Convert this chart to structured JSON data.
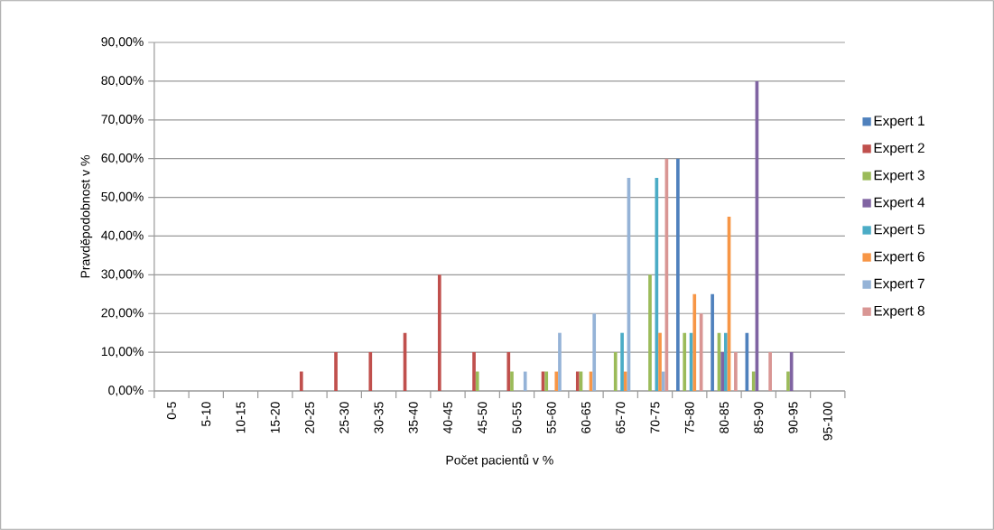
{
  "chart_data": {
    "type": "bar",
    "xlabel": "Počet pacientů v %",
    "ylabel": "Pravděpodobnost v %",
    "categories": [
      "0-5",
      "5-10",
      "10-15",
      "15-20",
      "20-25",
      "25-30",
      "30-35",
      "35-40",
      "40-45",
      "45-50",
      "50-55",
      "55-60",
      "60-65",
      "65-70",
      "70-75",
      "75-80",
      "80-85",
      "85-90",
      "90-95",
      "95-100"
    ],
    "series": [
      {
        "name": "Expert 1",
        "color": "#4f81bd",
        "values": [
          0,
          0,
          0,
          0,
          0,
          0,
          0,
          0,
          0,
          0,
          0,
          0,
          0,
          0,
          0,
          60,
          25,
          15,
          0,
          0
        ]
      },
      {
        "name": "Expert 2",
        "color": "#c0504d",
        "values": [
          0,
          0,
          0,
          0,
          5,
          10,
          10,
          15,
          30,
          10,
          10,
          5,
          5,
          0,
          0,
          0,
          0,
          0,
          0,
          0
        ]
      },
      {
        "name": "Expert 3",
        "color": "#9bbb59",
        "values": [
          0,
          0,
          0,
          0,
          0,
          0,
          0,
          0,
          0,
          5,
          5,
          5,
          5,
          10,
          30,
          15,
          15,
          5,
          5,
          0
        ]
      },
      {
        "name": "Expert 4",
        "color": "#8064a2",
        "values": [
          0,
          0,
          0,
          0,
          0,
          0,
          0,
          0,
          0,
          0,
          0,
          0,
          0,
          0,
          0,
          0,
          10,
          80,
          10,
          0
        ]
      },
      {
        "name": "Expert 5",
        "color": "#4bacc6",
        "values": [
          0,
          0,
          0,
          0,
          0,
          0,
          0,
          0,
          0,
          0,
          0,
          0,
          0,
          15,
          55,
          15,
          15,
          0,
          0,
          0
        ]
      },
      {
        "name": "Expert 6",
        "color": "#f79646",
        "values": [
          0,
          0,
          0,
          0,
          0,
          0,
          0,
          0,
          0,
          0,
          0,
          5,
          5,
          5,
          15,
          25,
          45,
          0,
          0,
          0
        ]
      },
      {
        "name": "Expert 7",
        "color": "#95b3d7",
        "values": [
          0,
          0,
          0,
          0,
          0,
          0,
          0,
          0,
          0,
          0,
          5,
          15,
          20,
          55,
          5,
          0,
          0,
          0,
          0,
          0
        ]
      },
      {
        "name": "Expert 8",
        "color": "#d99694",
        "values": [
          0,
          0,
          0,
          0,
          0,
          0,
          0,
          0,
          0,
          0,
          0,
          0,
          0,
          0,
          60,
          20,
          10,
          10,
          0,
          0
        ]
      }
    ],
    "ylim": [
      0,
      90
    ],
    "yticks": [
      {
        "value": 0,
        "label": "0,00%"
      },
      {
        "value": 10,
        "label": "10,00%"
      },
      {
        "value": 20,
        "label": "20,00%"
      },
      {
        "value": 30,
        "label": "30,00%"
      },
      {
        "value": 40,
        "label": "40,00%"
      },
      {
        "value": 50,
        "label": "50,00%"
      },
      {
        "value": 60,
        "label": "60,00%"
      },
      {
        "value": 70,
        "label": "70,00%"
      },
      {
        "value": 80,
        "label": "80,00%"
      },
      {
        "value": 90,
        "label": "90,00%"
      }
    ],
    "grid": "y",
    "legend": "right"
  }
}
